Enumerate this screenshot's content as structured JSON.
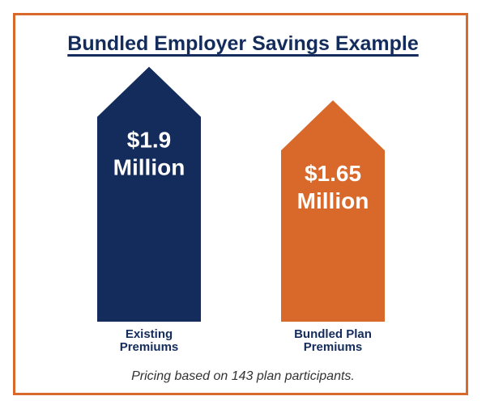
{
  "chart_data": {
    "type": "bar",
    "title": "Bundled Employer Savings Example",
    "categories": [
      [
        "Existing",
        "Premiums"
      ],
      [
        "Bundled Plan",
        "Premiums"
      ]
    ],
    "values": [
      1.9,
      1.65
    ],
    "value_labels": [
      [
        "$1.9",
        "Million"
      ],
      [
        "$1.65",
        "Million"
      ]
    ],
    "unit": "Million",
    "colors": [
      "#142c5c",
      "#d9692b"
    ],
    "footnote": "Pricing based on 143 plan participants."
  },
  "colors": {
    "border": "#d9692b",
    "title": "#142c5c"
  }
}
